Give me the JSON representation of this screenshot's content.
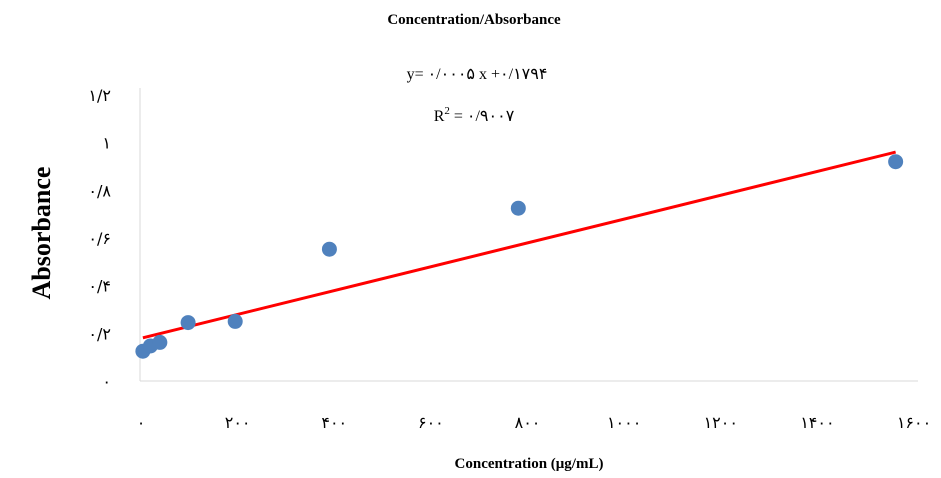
{
  "chart_data": {
    "type": "scatter",
    "title": "Concentration/Absorbance",
    "xlabel": "Concentration (μg/mL)",
    "ylabel": "Absorbance",
    "xlim": [
      0,
      1600
    ],
    "ylim": [
      0,
      1.2
    ],
    "xticks": [
      0,
      200,
      400,
      600,
      800,
      1000,
      1200,
      1400,
      1600
    ],
    "xtick_labels": [
      "۰",
      "۲۰۰",
      "۴۰۰",
      "۶۰۰",
      "۸۰۰",
      "۱۰۰۰",
      "۱۲۰۰",
      "۱۴۰۰",
      "۱۶۰۰"
    ],
    "yticks": [
      0,
      0.2,
      0.4,
      0.6,
      0.8,
      1,
      1.2
    ],
    "ytick_labels": [
      "۰",
      "۰/۲",
      "۰/۴",
      "۰/۶",
      "۰/۸",
      "۱",
      "۱/۲"
    ],
    "grid": false,
    "series": [
      {
        "x": [
          3.9,
          19.5,
          39,
          97.5,
          195,
          390,
          781,
          1562
        ],
        "y": [
          0.125,
          0.147,
          0.162,
          0.245,
          0.25,
          0.553,
          0.725,
          0.92
        ],
        "color": "#4f81bd"
      }
    ],
    "trendline": {
      "slope": 0.0005,
      "intercept": 0.1794,
      "x_range": [
        3.9,
        1562
      ],
      "color": "#ff0000"
    },
    "annotations": {
      "equation": "y= ۰/۰۰۰۵  x +۰/۱۷۹۴",
      "r2_label": "R",
      "r2_sup": "2",
      "r2_value": " = ۰/۹۰۰۷"
    }
  }
}
